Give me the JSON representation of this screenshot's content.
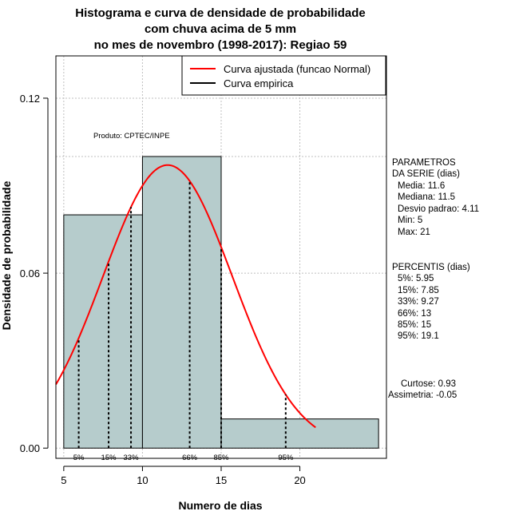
{
  "chart_data": {
    "type": "bar",
    "title_lines": [
      "Histograma e curva de densidade de probabilidade",
      "com chuva acima de 5 mm",
      "no mes de novembro (1998-2017): Regiao 59"
    ],
    "xlabel": "Numero de dias",
    "ylabel": "Densidade de probabilidade",
    "xlim": [
      4.5,
      25.5
    ],
    "ylim": [
      -0.0035,
      0.1345
    ],
    "x_ticks": [
      5,
      10,
      15,
      20
    ],
    "y_ticks": [
      0.0,
      0.06,
      0.12
    ],
    "y_tick_labels": [
      "0.00",
      "0.06",
      "0.12"
    ],
    "grid": true,
    "grid_x": [
      5,
      10,
      15,
      20
    ],
    "grid_y": [
      0.0,
      0.06,
      0.12
    ],
    "bins": [
      {
        "x0": 5,
        "x1": 10,
        "density": 0.08
      },
      {
        "x0": 10,
        "x1": 15,
        "density": 0.1
      },
      {
        "x0": 15,
        "x1": 25,
        "density": 0.01
      }
    ],
    "bar_color": "#b6cccc",
    "normal_curve": {
      "mean": 11.6,
      "sd": 4.11,
      "x_from": 4.5,
      "x_to": 21,
      "color": "#ff0000"
    },
    "percentiles": [
      {
        "label": "5%",
        "x": 5.95
      },
      {
        "label": "15%",
        "x": 7.85
      },
      {
        "label": "33%",
        "x": 9.27
      },
      {
        "label": "66%",
        "x": 13
      },
      {
        "label": "85%",
        "x": 15
      },
      {
        "label": "95%",
        "x": 19.1
      }
    ],
    "legend": {
      "position": "top-right",
      "entries": [
        {
          "label": "Curva ajustada (funcao Normal)",
          "color": "#ff0000"
        },
        {
          "label": "Curva empirica",
          "color": "#000000"
        }
      ]
    },
    "annotation": "Produto: CPTEC/INPE",
    "parameters": {
      "heading_lines": [
        "PARAMETROS",
        "DA SERIE (dias)"
      ],
      "lines": [
        "Media: 11.6",
        "Mediana: 11.5",
        "Desvio padrao: 4.11",
        "Min: 5",
        "Max: 21"
      ]
    },
    "percentis_box": {
      "heading": "PERCENTIS (dias)",
      "lines": [
        "5%: 5.95",
        "15%: 7.85",
        "33%: 9.27",
        "66%: 13",
        "85%: 15",
        "95%: 19.1"
      ]
    },
    "moments": [
      "Curtose: 0.93",
      "Assimetria: -0.05"
    ]
  }
}
